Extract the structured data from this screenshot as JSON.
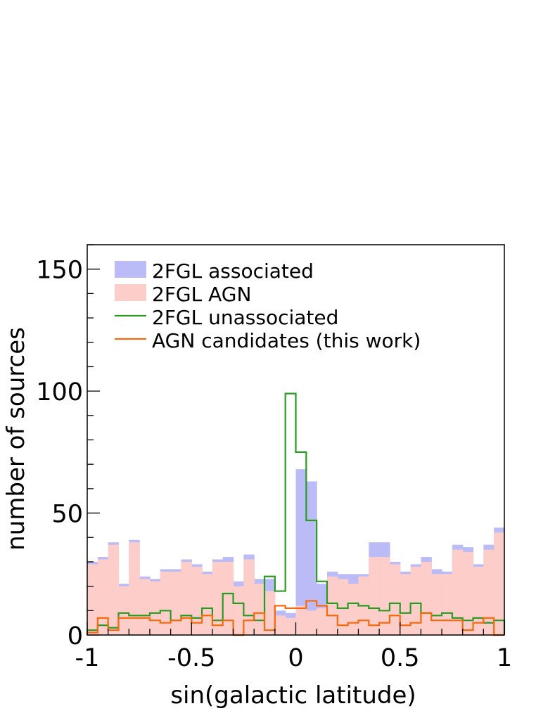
{
  "chart_data": {
    "type": "histogram",
    "xlabel": "sin(galactic latitude)",
    "ylabel": "number of sources",
    "xlim": [
      -1,
      1
    ],
    "ylim": [
      0,
      160
    ],
    "x_ticks": [
      {
        "value": -1,
        "label": "-1"
      },
      {
        "value": -0.5,
        "label": "-0.5"
      },
      {
        "value": 0,
        "label": "0"
      },
      {
        "value": 0.5,
        "label": "0.5"
      },
      {
        "value": 1,
        "label": "1"
      }
    ],
    "y_ticks": [
      {
        "value": 0,
        "label": "0"
      },
      {
        "value": 50,
        "label": "50"
      },
      {
        "value": 100,
        "label": "100"
      },
      {
        "value": 150,
        "label": "150"
      }
    ],
    "bin_edges_range": [
      -1,
      1
    ],
    "bin_count": 40,
    "legend_position": "top-left",
    "series": [
      {
        "name": "2FGL associated",
        "style": "filled",
        "color": "#bbbbf7",
        "values": [
          30,
          32,
          38,
          21,
          39,
          24,
          23,
          27,
          27,
          31,
          29,
          26,
          31,
          32,
          22,
          33,
          23,
          23,
          10,
          9,
          68,
          63,
          21,
          26,
          25,
          25,
          25,
          38,
          38,
          30,
          26,
          29,
          32,
          27,
          26,
          37,
          36,
          29,
          37,
          44
        ]
      },
      {
        "name": "2FGL AGN",
        "style": "filled",
        "color": "#fdcdca",
        "values": [
          29,
          31,
          37,
          20,
          38,
          23,
          22,
          26,
          26,
          30,
          28,
          25,
          30,
          30,
          20,
          31,
          21,
          18,
          8,
          7,
          12,
          10,
          11,
          24,
          23,
          21,
          24,
          32,
          32,
          29,
          25,
          28,
          30,
          25,
          25,
          35,
          34,
          28,
          35,
          42
        ]
      },
      {
        "name": "2FGL unassociated",
        "style": "step",
        "color": "#2a9a23",
        "values": [
          2,
          4,
          3,
          9,
          8,
          8,
          9,
          10,
          6,
          8,
          7,
          11,
          6,
          17,
          13,
          8,
          6,
          24,
          18,
          99,
          75,
          47,
          22,
          13,
          11,
          13,
          12,
          11,
          10,
          13,
          9,
          13,
          9,
          8,
          9,
          7,
          6,
          7,
          5,
          6
        ]
      },
      {
        "name": "AGN candidates (this work)",
        "style": "step",
        "color": "#f56a0c",
        "values": [
          1,
          7,
          2,
          7,
          7,
          7,
          6,
          5,
          6,
          7,
          5,
          8,
          4,
          6,
          0,
          6,
          9,
          2,
          12,
          11,
          11,
          14,
          12,
          8,
          4,
          5,
          6,
          4,
          5,
          8,
          4,
          5,
          9,
          6,
          6,
          6,
          2,
          5,
          7,
          0
        ]
      }
    ]
  }
}
